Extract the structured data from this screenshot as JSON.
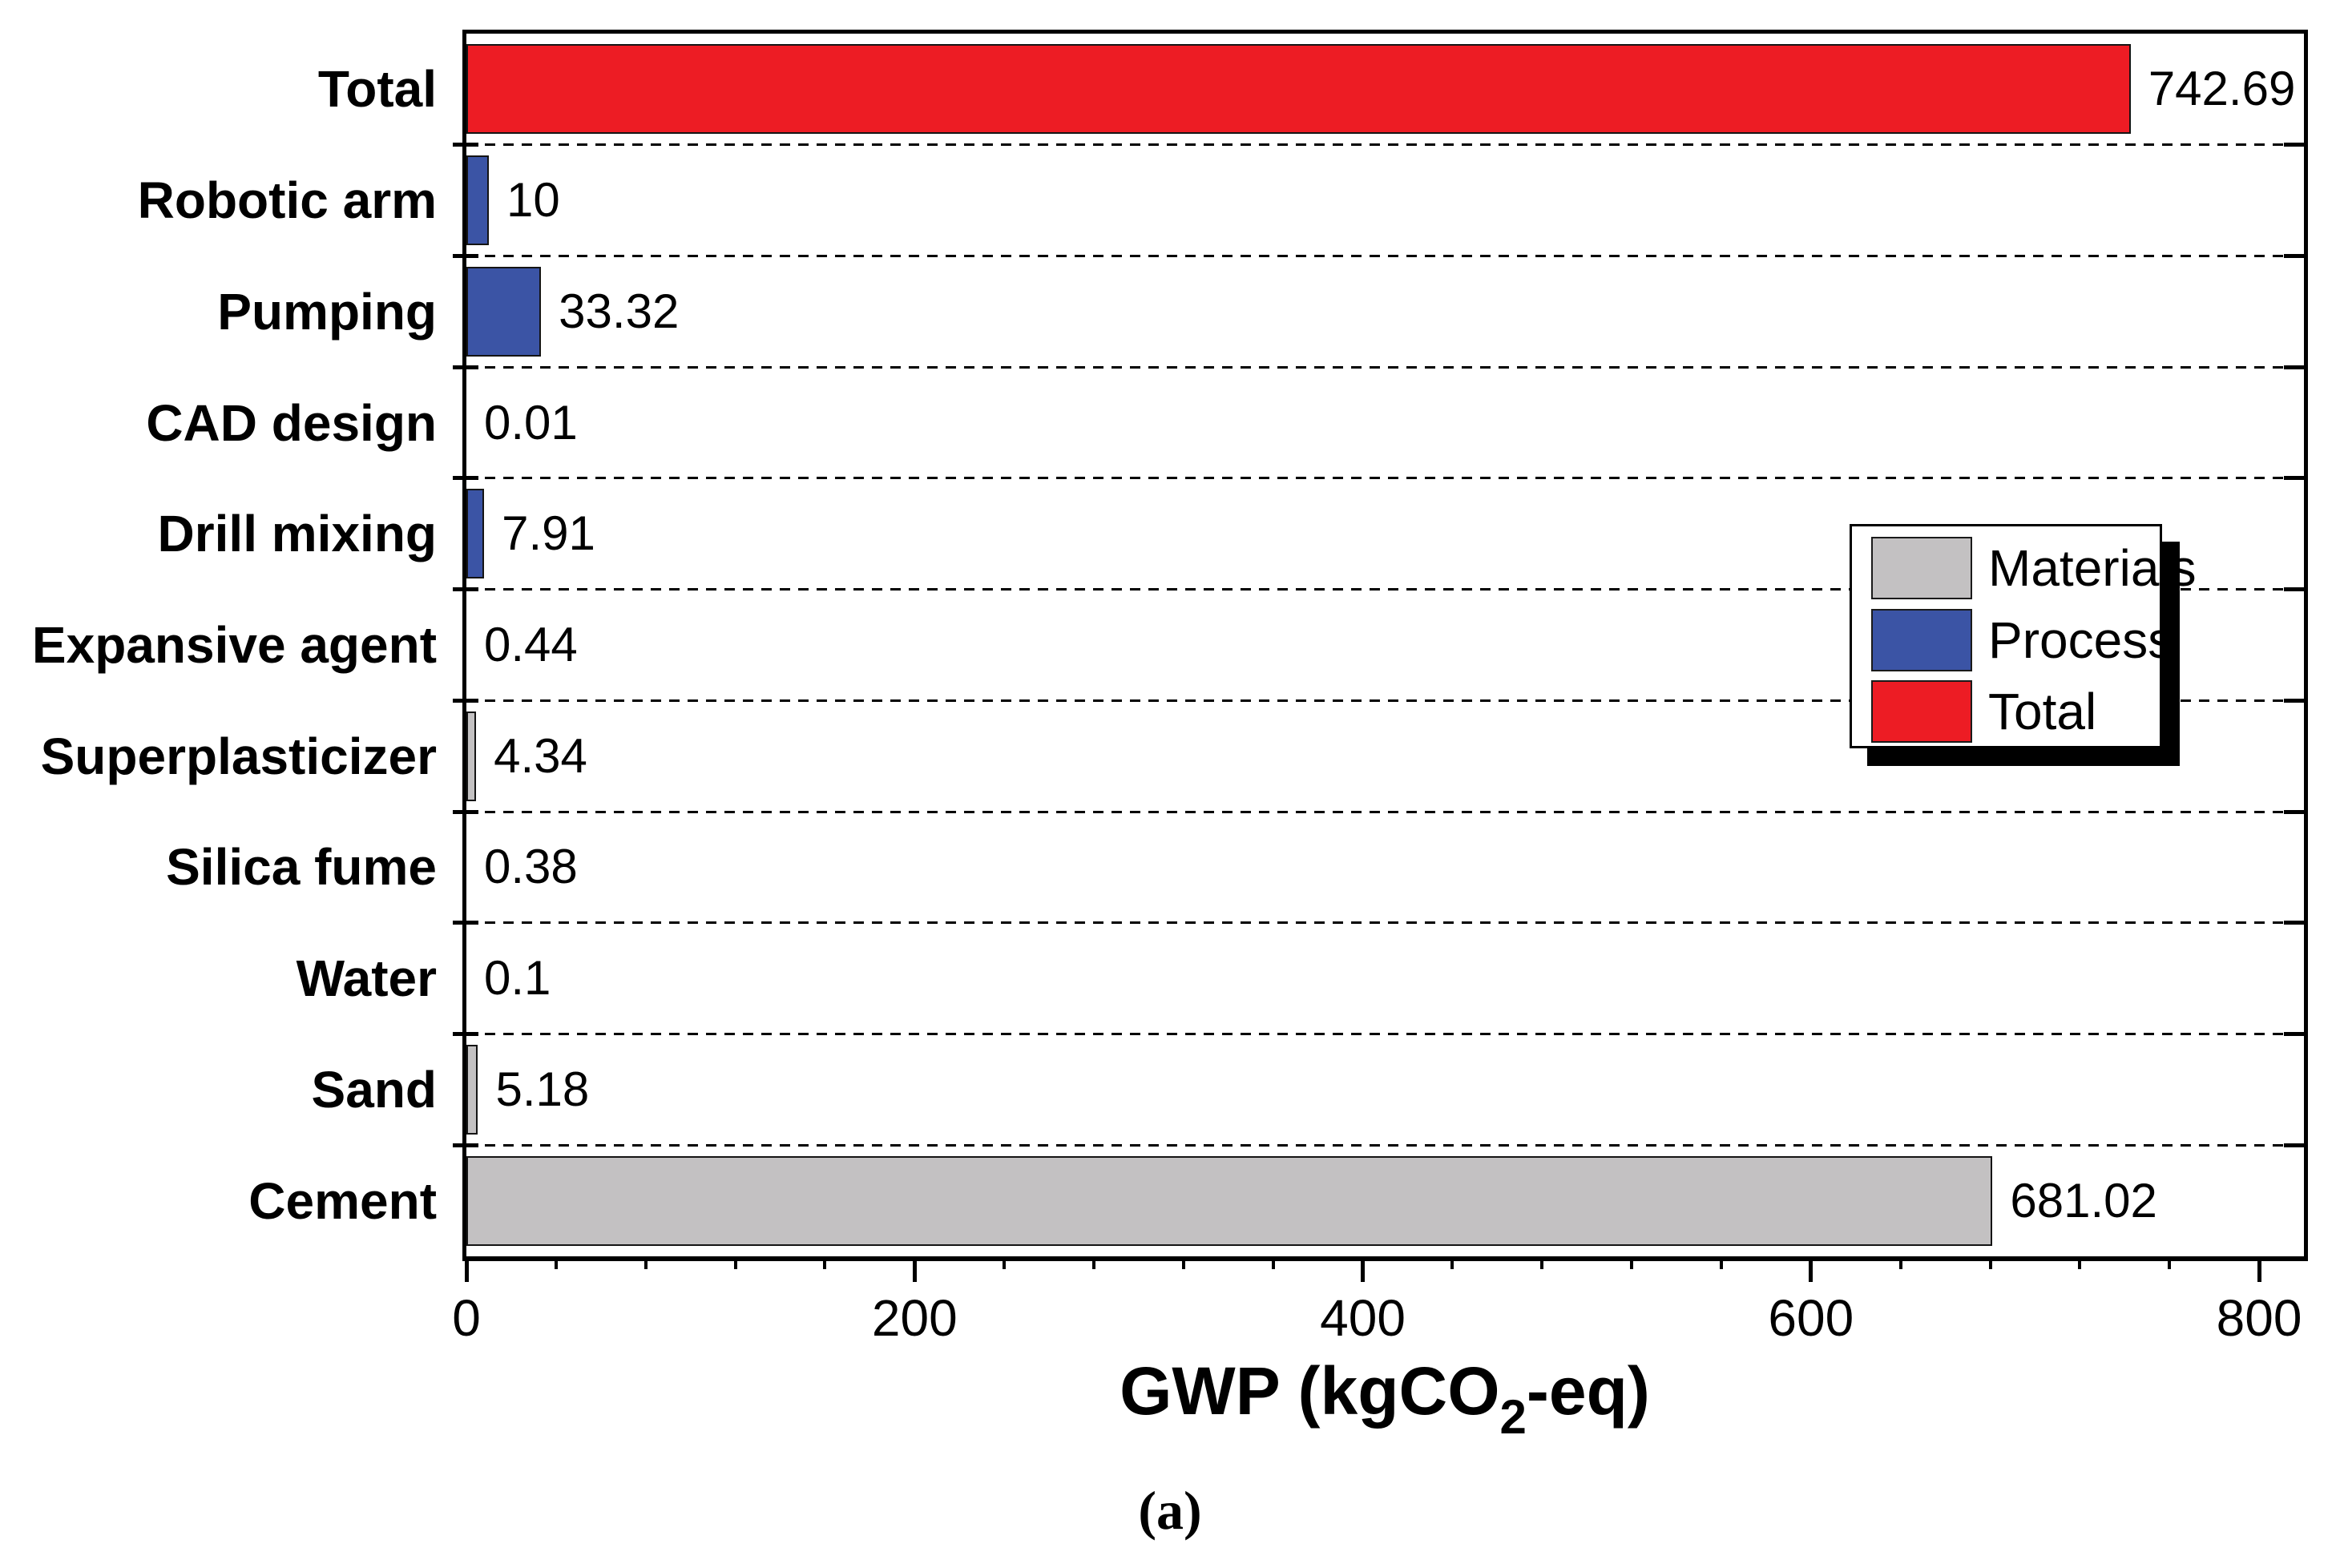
{
  "figure": {
    "caption": "(a)",
    "xlabel": {
      "prefix": "GWP (kgCO",
      "sub": "2",
      "suffix": "-eq)"
    }
  },
  "chart_data": {
    "type": "bar",
    "orientation": "horizontal",
    "title": "",
    "xlabel": "GWP (kgCO2-eq)",
    "ylabel": "",
    "categories": [
      "Total",
      "Robotic arm",
      "Pumping",
      "CAD design",
      "Drill mixing",
      "Expansive agent",
      "Superplasticizer",
      "Silica fume",
      "Water",
      "Sand",
      "Cement"
    ],
    "values": [
      742.69,
      10,
      33.32,
      0.01,
      7.91,
      0.44,
      4.34,
      0.38,
      0.1,
      5.18,
      681.02
    ],
    "value_labels": [
      "742.69",
      "10",
      "33.32",
      "0.01",
      "7.91",
      "0.44",
      "4.34",
      "0.38",
      "0.1",
      "5.18",
      "681.02"
    ],
    "groups": [
      "total",
      "process",
      "process",
      "process",
      "process",
      "materials",
      "materials",
      "materials",
      "materials",
      "materials",
      "materials"
    ],
    "colors": {
      "materials": "#c3c1c2",
      "process": "#3b54a5",
      "total": "#ed1c24",
      "bar_border": "#141414"
    },
    "xlim": [
      0,
      820
    ],
    "x_ticks": [
      0,
      200,
      400,
      600,
      800
    ],
    "x_minor_tick_step": 40,
    "grid": "dashed horizontal category separators",
    "legend": {
      "position": "upper right inside plot",
      "entries": [
        {
          "label": "Materials",
          "color": "#c3c1c2"
        },
        {
          "label": "Process",
          "color": "#3b54a5"
        },
        {
          "label": "Total",
          "color": "#ed1c24"
        }
      ]
    }
  }
}
